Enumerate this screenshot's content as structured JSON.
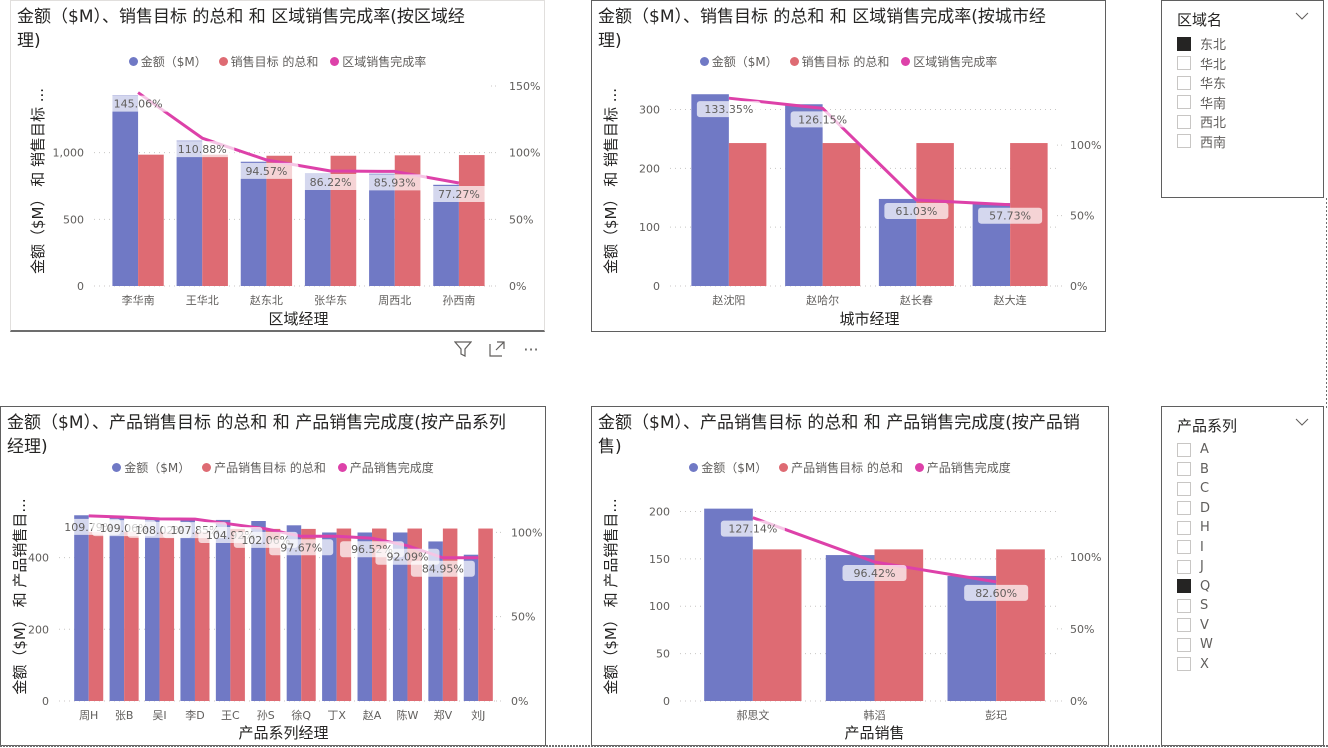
{
  "colors": {
    "amount": "#7079c5",
    "target": "#de6b73",
    "rate": "#dd41a9",
    "grid": "#c8c6c4",
    "label_bg_blue": "#dcdff0",
    "label_bg_red": "#f6d6d9"
  },
  "visual_header": {
    "filter_icon": "filter-icon",
    "focus_icon": "focus-mode-icon",
    "more_icon": "more-options-icon",
    "more_label": "···"
  },
  "slicers": [
    {
      "title": "区域名",
      "items": [
        {
          "label": "东北",
          "checked": true
        },
        {
          "label": "华北",
          "checked": false
        },
        {
          "label": "华东",
          "checked": false
        },
        {
          "label": "华南",
          "checked": false
        },
        {
          "label": "西北",
          "checked": false
        },
        {
          "label": "西南",
          "checked": false
        }
      ]
    },
    {
      "title": "产品系列",
      "items": [
        {
          "label": "A",
          "checked": false
        },
        {
          "label": "B",
          "checked": false
        },
        {
          "label": "C",
          "checked": false
        },
        {
          "label": "D",
          "checked": false
        },
        {
          "label": "H",
          "checked": false
        },
        {
          "label": "I",
          "checked": false
        },
        {
          "label": "J",
          "checked": false
        },
        {
          "label": "Q",
          "checked": true
        },
        {
          "label": "S",
          "checked": false
        },
        {
          "label": "V",
          "checked": false
        },
        {
          "label": "W",
          "checked": false
        },
        {
          "label": "X",
          "checked": false
        }
      ]
    }
  ],
  "chart_data": [
    {
      "type": "bar",
      "combo": "clustered-column-line",
      "title": "金额（$M）、销售目标 的总和 和 区域销售完成率(按区域经理)",
      "legend": [
        "金额（$M）",
        "销售目标 的总和",
        "区域销售完成率"
      ],
      "legend_position": "top-center",
      "xlabel": "区域经理",
      "ylabel": "金额（$M） 和 销售目标 ...",
      "categories": [
        "李华南",
        "王华北",
        "赵东北",
        "张华东",
        "周西北",
        "孙西南"
      ],
      "ylim": [
        0,
        1500
      ],
      "yticks": [
        0,
        500,
        1000
      ],
      "ytick_labels": [
        "0",
        "500",
        "1,000"
      ],
      "y2lim": [
        0,
        1.5
      ],
      "y2ticks": [
        0,
        0.5,
        1.0,
        1.5
      ],
      "y2tick_labels": [
        "0%",
        "50%",
        "100%",
        "150%"
      ],
      "grid": true,
      "series": [
        {
          "name": "金额（$M）",
          "kind": "bar",
          "axis": "left",
          "values": [
            1430,
            1090,
            932,
            842,
            842,
            759
          ]
        },
        {
          "name": "销售目标 的总和",
          "kind": "bar",
          "axis": "left",
          "values": [
            985,
            985,
            977,
            977,
            980,
            982
          ]
        },
        {
          "name": "区域销售完成率",
          "kind": "line",
          "axis": "right",
          "values": [
            1.4506,
            1.1088,
            0.9457,
            0.8622,
            0.8593,
            0.7727
          ],
          "labels": [
            "145.06%",
            "110.88%",
            "94.57%",
            "86.22%",
            "85.93%",
            "77.27%"
          ]
        }
      ]
    },
    {
      "type": "bar",
      "combo": "clustered-column-line",
      "title": "金额（$M）、销售目标 的总和 和 区域销售完成率(按城市经理)",
      "legend": [
        "金额（$M）",
        "销售目标 的总和",
        "区域销售完成率"
      ],
      "legend_position": "top-center",
      "xlabel": "城市经理",
      "ylabel": "金额（$M） 和 销售目标 ...",
      "categories": [
        "赵沈阳",
        "赵哈尔",
        "赵长春",
        "赵大连"
      ],
      "ylim": [
        0,
        340
      ],
      "yticks": [
        0,
        100,
        200,
        300
      ],
      "ytick_labels": [
        "0",
        "100",
        "200",
        "300"
      ],
      "y2lim": [
        0,
        1.42
      ],
      "y2ticks": [
        0,
        0.5,
        1.0
      ],
      "y2tick_labels": [
        "0%",
        "50%",
        "100%"
      ],
      "grid": true,
      "series": [
        {
          "name": "金额（$M）",
          "kind": "bar",
          "axis": "left",
          "values": [
            326,
            309,
            148,
            141
          ]
        },
        {
          "name": "销售目标 的总和",
          "kind": "bar",
          "axis": "left",
          "values": [
            243,
            243,
            243,
            243
          ]
        },
        {
          "name": "区域销售完成率",
          "kind": "line",
          "axis": "right",
          "values": [
            1.3335,
            1.2615,
            0.6103,
            0.5773
          ],
          "labels": [
            "133.35%",
            "126.15%",
            "61.03%",
            "57.73%"
          ]
        }
      ]
    },
    {
      "type": "bar",
      "combo": "clustered-column-line",
      "title": "金额（$M）、产品销售目标 的总和 和 产品销售完成度(按产品系列经理)",
      "legend": [
        "金额（$M）",
        "产品销售目标 的总和",
        "产品销售完成度"
      ],
      "legend_position": "top-center",
      "xlabel": "产品系列经理",
      "ylabel": "金额（$M） 和 产品销售目...",
      "categories": [
        "周H",
        "张B",
        "吴I",
        "李D",
        "王C",
        "孙S",
        "徐Q",
        "丁X",
        "赵A",
        "陈W",
        "郑V",
        "刘J"
      ],
      "ylim": [
        0,
        555
      ],
      "yticks": [
        0,
        200,
        400
      ],
      "ytick_labels": [
        "0",
        "200",
        "400"
      ],
      "y2lim": [
        0,
        1.18
      ],
      "y2ticks": [
        0,
        0.5,
        1.0
      ],
      "y2tick_labels": [
        "0%",
        "50%",
        "100%"
      ],
      "grid": true,
      "series": [
        {
          "name": "金额（$M）",
          "kind": "bar",
          "axis": "left",
          "values": [
            518,
            515,
            510,
            507,
            505,
            502,
            490,
            470,
            470,
            470,
            445,
            408
          ]
        },
        {
          "name": "产品销售目标 的总和",
          "kind": "bar",
          "axis": "left",
          "values": [
            472,
            472,
            472,
            472,
            480,
            480,
            480,
            481,
            481,
            481,
            481,
            481
          ]
        },
        {
          "name": "产品销售完成度",
          "kind": "line",
          "axis": "right",
          "values": [
            1.0979,
            1.0906,
            1.0802,
            1.0785,
            1.0492,
            1.0206,
            0.9767,
            0.9767,
            0.9652,
            0.9209,
            0.8495,
            0.8495
          ],
          "labels": [
            "109.79%",
            "109.06%",
            "108.02%",
            "107.85%",
            "104.92%",
            "102.06%",
            "97.67%",
            "",
            "96.52%",
            "92.09%",
            "84.95%",
            ""
          ]
        }
      ]
    },
    {
      "type": "bar",
      "combo": "clustered-column-line",
      "title": "金额（$M）、产品销售目标 的总和 和 产品销售完成度(按产品销售)",
      "legend": [
        "金额（$M）",
        "产品销售目标 的总和",
        "产品销售完成度"
      ],
      "legend_position": "top-center",
      "xlabel": "产品销售",
      "ylabel": "金额（$M） 和 产品销售目...",
      "categories": [
        "郝思文",
        "韩滔",
        "彭玘"
      ],
      "ylim": [
        0,
        210
      ],
      "yticks": [
        0,
        50,
        100,
        150,
        200
      ],
      "ytick_labels": [
        "0",
        "50",
        "100",
        "150",
        "200"
      ],
      "y2lim": [
        0,
        1.38
      ],
      "y2ticks": [
        0,
        0.5,
        1.0
      ],
      "y2tick_labels": [
        "0%",
        "50%",
        "100%"
      ],
      "grid": true,
      "series": [
        {
          "name": "金额（$M）",
          "kind": "bar",
          "axis": "left",
          "values": [
            203,
            154,
            132
          ]
        },
        {
          "name": "产品销售目标 的总和",
          "kind": "bar",
          "axis": "left",
          "values": [
            160,
            160,
            160
          ]
        },
        {
          "name": "产品销售完成度",
          "kind": "line",
          "axis": "right",
          "values": [
            1.2714,
            0.9642,
            0.826
          ],
          "labels": [
            "127.14%",
            "96.42%",
            "82.60%"
          ]
        }
      ]
    }
  ]
}
